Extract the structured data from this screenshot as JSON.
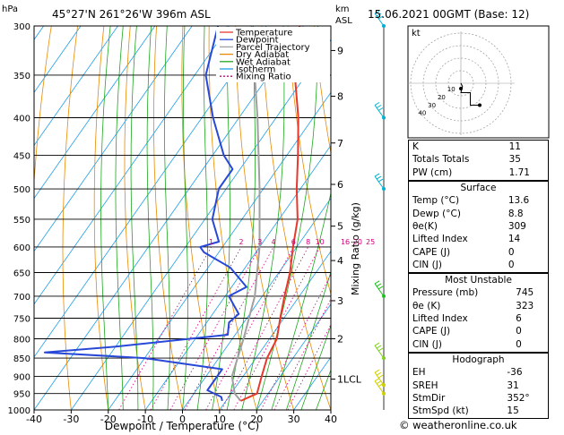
{
  "header": {
    "location": "45°27'N  261°26'W  396m  ASL",
    "datetime": "15.06.2021  00GMT  (Base: 12)",
    "hpa_label": "hPa",
    "km_label": "km",
    "asl_label": "ASL",
    "mixing_ratio_axis_label": "Mixing Ratio (g/kg)"
  },
  "legend": [
    {
      "label": "Temperature",
      "color": "#e8382c"
    },
    {
      "label": "Dewpoint",
      "color": "#2848d8"
    },
    {
      "label": "Parcel Trajectory",
      "color": "#a0a0a0"
    },
    {
      "label": "Dry Adiabat",
      "color": "#e88a00"
    },
    {
      "label": "Wet Adiabat",
      "color": "#1ea81e"
    },
    {
      "label": "Isotherm",
      "color": "#1e9ee8"
    },
    {
      "label": "Mixing Ratio",
      "color": "#d0007a"
    }
  ],
  "chart_data": {
    "type": "skew-t",
    "xlabel": "Dewpoint / Temperature (°C)",
    "x_ticks": [
      -40,
      -30,
      -20,
      -10,
      0,
      10,
      20,
      30,
      40
    ],
    "xlim": [
      -40,
      40
    ],
    "pressure_levels": [
      300,
      350,
      400,
      450,
      500,
      550,
      600,
      650,
      700,
      750,
      800,
      850,
      900,
      950,
      1000
    ],
    "ylim": [
      1000,
      300
    ],
    "altitude_ticks_km": [
      {
        "label": "9",
        "p": 324
      },
      {
        "label": "8",
        "p": 374
      },
      {
        "label": "7",
        "p": 433
      },
      {
        "label": "6",
        "p": 493
      },
      {
        "label": "5",
        "p": 562
      },
      {
        "label": "4",
        "p": 626
      },
      {
        "label": "3",
        "p": 710
      },
      {
        "label": "2",
        "p": 800
      },
      {
        "label": "1LCL",
        "p": 908
      }
    ],
    "mixing_ratio_labels": [
      "1",
      "2",
      "3",
      "4",
      "6",
      "8",
      "10",
      "16",
      "20",
      "25"
    ],
    "mixing_ratio_values": [
      1,
      2,
      3,
      4,
      6,
      8,
      10,
      16,
      20,
      25
    ],
    "temperature": [
      {
        "p": 300,
        "t": -41
      },
      {
        "p": 350,
        "t": -33
      },
      {
        "p": 400,
        "t": -24
      },
      {
        "p": 450,
        "t": -17
      },
      {
        "p": 500,
        "t": -11
      },
      {
        "p": 550,
        "t": -5
      },
      {
        "p": 600,
        "t": -1
      },
      {
        "p": 650,
        "t": 3
      },
      {
        "p": 700,
        "t": 6
      },
      {
        "p": 750,
        "t": 9
      },
      {
        "p": 800,
        "t": 12
      },
      {
        "p": 850,
        "t": 13
      },
      {
        "p": 900,
        "t": 15
      },
      {
        "p": 950,
        "t": 17
      },
      {
        "p": 972,
        "t": 14
      }
    ],
    "dewpoint": [
      {
        "p": 300,
        "t": -63
      },
      {
        "p": 350,
        "t": -57
      },
      {
        "p": 400,
        "t": -47
      },
      {
        "p": 450,
        "t": -37
      },
      {
        "p": 470,
        "t": -32
      },
      {
        "p": 500,
        "t": -32
      },
      {
        "p": 550,
        "t": -28
      },
      {
        "p": 590,
        "t": -22
      },
      {
        "p": 600,
        "t": -26
      },
      {
        "p": 610,
        "t": -24
      },
      {
        "p": 640,
        "t": -14
      },
      {
        "p": 680,
        "t": -6
      },
      {
        "p": 700,
        "t": -9
      },
      {
        "p": 740,
        "t": -3
      },
      {
        "p": 760,
        "t": -4
      },
      {
        "p": 790,
        "t": -2
      },
      {
        "p": 820,
        "t": -30
      },
      {
        "p": 835,
        "t": -48
      },
      {
        "p": 850,
        "t": -20
      },
      {
        "p": 880,
        "t": 3
      },
      {
        "p": 940,
        "t": 3
      },
      {
        "p": 960,
        "t": 8
      },
      {
        "p": 972,
        "t": 9
      }
    ],
    "parcel": [
      {
        "p": 300,
        "t": -54
      },
      {
        "p": 400,
        "t": -35
      },
      {
        "p": 500,
        "t": -21
      },
      {
        "p": 600,
        "t": -10
      },
      {
        "p": 700,
        "t": -2
      },
      {
        "p": 800,
        "t": 3
      },
      {
        "p": 900,
        "t": 7
      },
      {
        "p": 950,
        "t": 11
      },
      {
        "p": 972,
        "t": 14
      }
    ],
    "wind_barbs": [
      {
        "p": 300,
        "color": "#00b0d0"
      },
      {
        "p": 400,
        "color": "#00b0d0"
      },
      {
        "p": 500,
        "color": "#00b0d0"
      },
      {
        "p": 700,
        "color": "#20c020"
      },
      {
        "p": 850,
        "color": "#80d020"
      },
      {
        "p": 925,
        "color": "#d0d000"
      },
      {
        "p": 950,
        "color": "#d0d000"
      }
    ],
    "hodograph": {
      "label": "kt",
      "ring_labels": [
        "10",
        "20",
        "30",
        "40"
      ],
      "trace": [
        [
          0,
          0
        ],
        [
          1,
          -2
        ],
        [
          0,
          -6
        ],
        [
          6,
          -6
        ],
        [
          6,
          -14
        ],
        [
          12,
          -14
        ]
      ]
    }
  },
  "indices": {
    "top": [
      {
        "label": "K",
        "value": "11"
      },
      {
        "label": "Totals Totals",
        "value": "35"
      },
      {
        "label": "PW (cm)",
        "value": "1.71"
      }
    ],
    "surface": {
      "title": "Surface",
      "rows": [
        {
          "label": "Temp (°C)",
          "value": "13.6"
        },
        {
          "label": "Dewp (°C)",
          "value": "8.8"
        },
        {
          "label": "θe(K)",
          "value": "309"
        },
        {
          "label": "Lifted Index",
          "value": "14"
        },
        {
          "label": "CAPE (J)",
          "value": "0"
        },
        {
          "label": "CIN (J)",
          "value": "0"
        }
      ]
    },
    "most_unstable": {
      "title": "Most Unstable",
      "rows": [
        {
          "label": "Pressure (mb)",
          "value": "745"
        },
        {
          "label": "θe (K)",
          "value": "323"
        },
        {
          "label": "Lifted Index",
          "value": "6"
        },
        {
          "label": "CAPE (J)",
          "value": "0"
        },
        {
          "label": "CIN (J)",
          "value": "0"
        }
      ]
    },
    "hodograph": {
      "title": "Hodograph",
      "rows": [
        {
          "label": "EH",
          "value": "-36"
        },
        {
          "label": "SREH",
          "value": "31"
        },
        {
          "label": "StmDir",
          "value": "352°"
        },
        {
          "label": "StmSpd (kt)",
          "value": "15"
        }
      ]
    }
  },
  "footer": "© weatheronline.co.uk"
}
